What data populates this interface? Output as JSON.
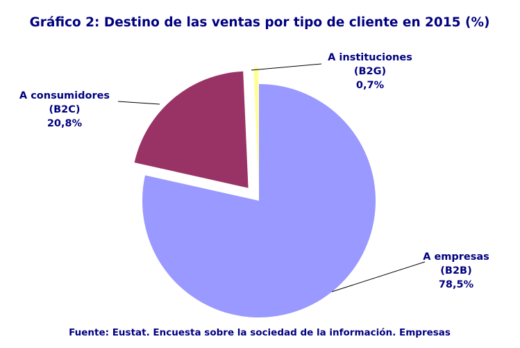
{
  "chart_data": {
    "type": "pie",
    "title": "Gráfico 2: Destino de las ventas por tipo de cliente en 2015 (%)",
    "categories": [
      [
        "A empresas",
        "(B2B)"
      ],
      [
        "A consumidores",
        "(B2C)"
      ],
      [
        "A instituciones",
        "(B2G)"
      ]
    ],
    "values": [
      78.5,
      20.8,
      0.7
    ],
    "value_labels": [
      "78,5%",
      "20,8%",
      "0,7%"
    ],
    "colors": [
      "#9999ff",
      "#993366",
      "#ffff99"
    ],
    "footnote": "Fuente: Eustat. Encuesta sobre la sociedad de la información. Empresas"
  }
}
